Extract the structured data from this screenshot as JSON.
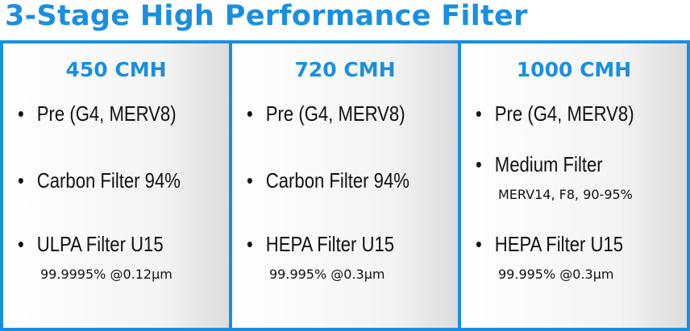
{
  "title": "3-Stage High Performance Filter",
  "columns": [
    {
      "heading": "450 CMH",
      "items": [
        {
          "label": "Pre (G4, MERV8)"
        },
        {
          "label": "Carbon Filter 94%"
        },
        {
          "label": "ULPA Filter U15",
          "note": "99.9995% @0.12µm"
        }
      ]
    },
    {
      "heading": "720 CMH",
      "items": [
        {
          "label": "Pre (G4, MERV8)"
        },
        {
          "label": "Carbon Filter 94%"
        },
        {
          "label": "HEPA Filter U15",
          "note": "99.995% @0.3µm"
        }
      ]
    },
    {
      "heading": "1000 CMH",
      "items": [
        {
          "label": "Pre (G4, MERV8)"
        },
        {
          "label": "Medium Filter",
          "note": "MERV14, F8, 90-95%"
        },
        {
          "label": "HEPA Filter U15",
          "note": "99.995% @0.3µm"
        }
      ]
    }
  ]
}
